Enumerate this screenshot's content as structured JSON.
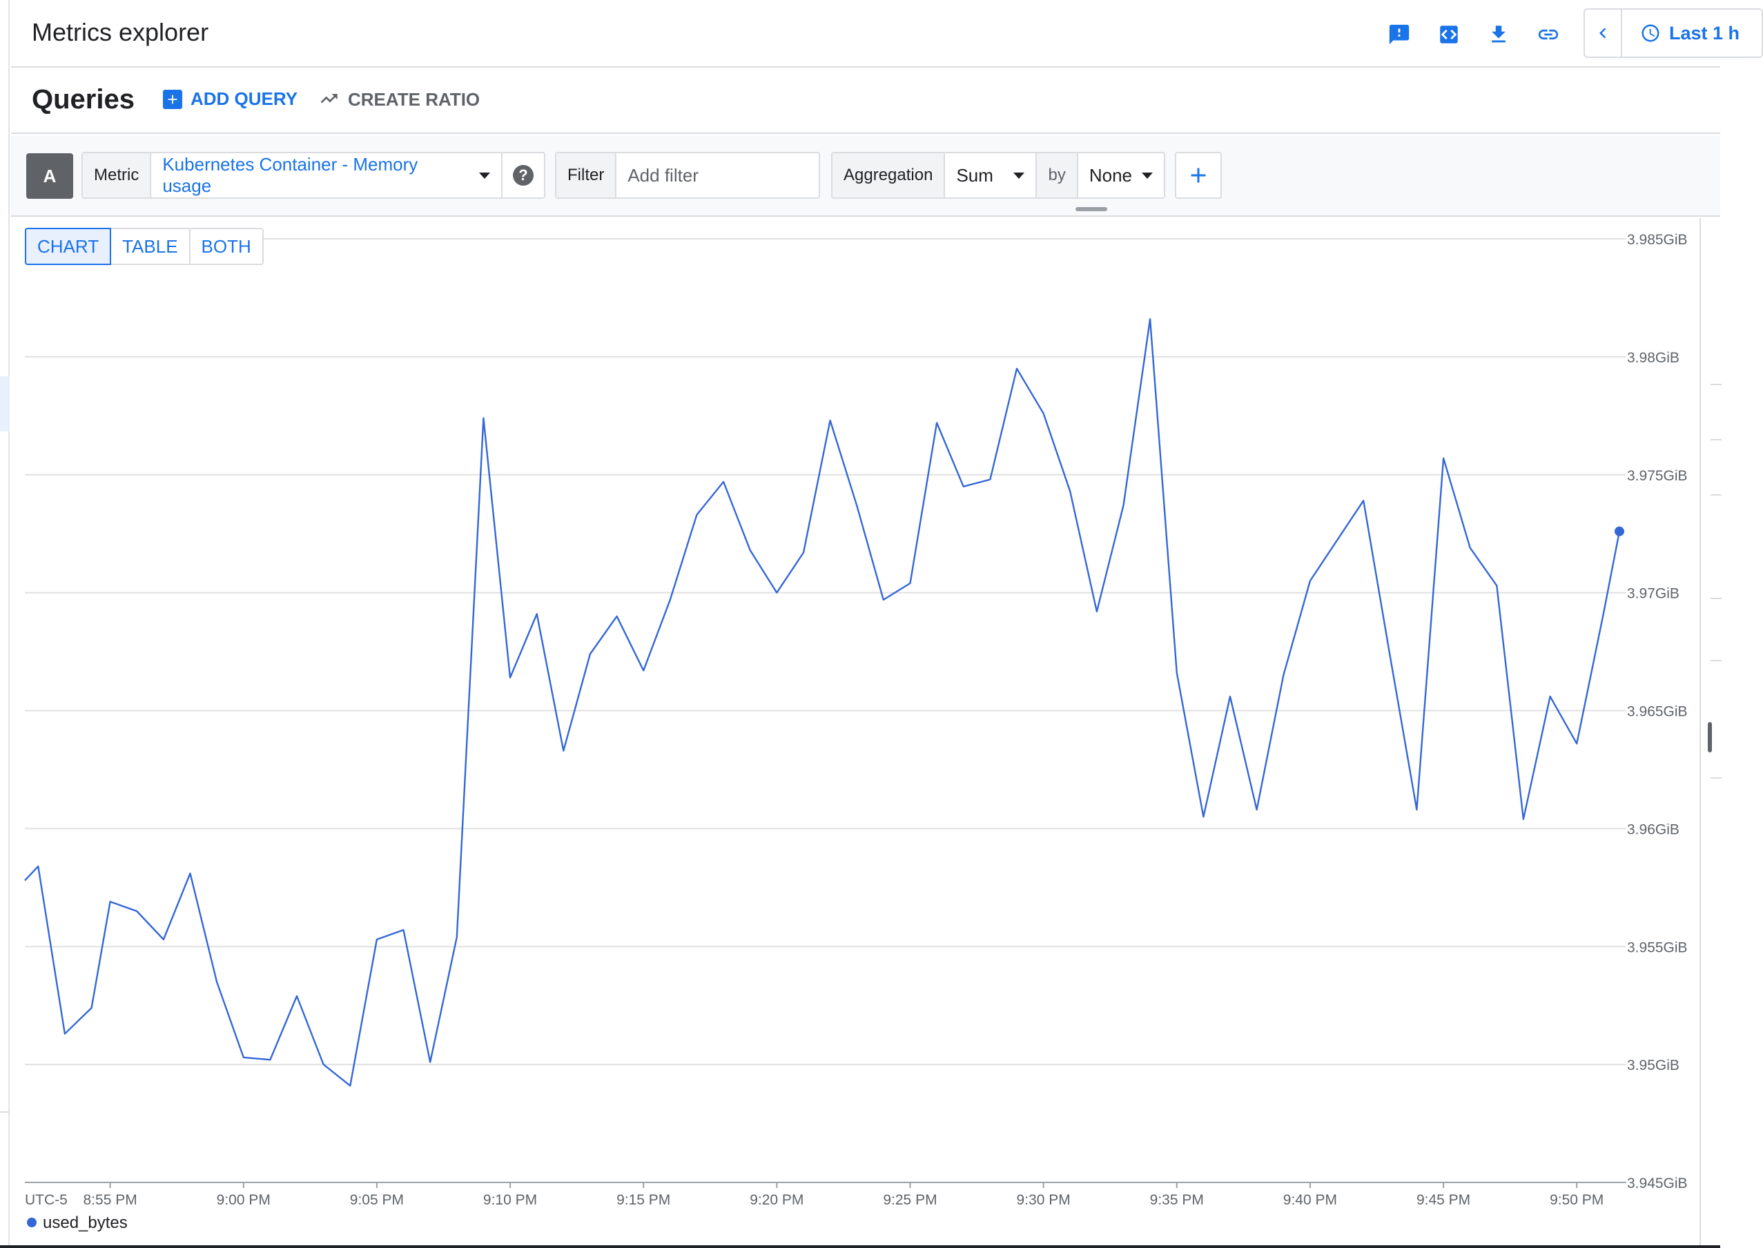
{
  "header": {
    "title": "Metrics explorer",
    "icons": [
      "feedback-icon",
      "code-icon",
      "download-icon",
      "link-icon"
    ],
    "time_range": "Last 1 h"
  },
  "queries": {
    "title": "Queries",
    "add_query_label": "ADD QUERY",
    "create_ratio_label": "CREATE RATIO"
  },
  "query": {
    "letter": "A",
    "metric_label": "Metric",
    "metric_value": "Kubernetes Container - Memory usage",
    "help_symbol": "?",
    "filter_label": "Filter",
    "filter_placeholder": "Add filter",
    "aggregation_label": "Aggregation",
    "aggregation_value": "Sum",
    "by_label": "by",
    "group_by_value": "None",
    "add_symbol": "+"
  },
  "view_toggle": {
    "chart": "CHART",
    "table": "TABLE",
    "both": "BOTH",
    "active": "chart"
  },
  "colors": {
    "accent": "#1a73e8",
    "series": "#3367d6",
    "grid": "#e0e0e0"
  },
  "chart_data": {
    "type": "line",
    "ylim": [
      3.945,
      3.985
    ],
    "y_unit": "GiB",
    "y_ticks": [
      "3.985GiB",
      "3.98GiB",
      "3.975GiB",
      "3.97GiB",
      "3.965GiB",
      "3.96GiB",
      "3.955GiB",
      "3.95GiB",
      "3.945GiB"
    ],
    "y_tick_values": [
      3.985,
      3.98,
      3.975,
      3.97,
      3.965,
      3.96,
      3.955,
      3.95,
      3.945
    ],
    "timezone_label": "UTC-5",
    "x_ticks": [
      "8:55 PM",
      "9:00 PM",
      "9:05 PM",
      "9:10 PM",
      "9:15 PM",
      "9:20 PM",
      "9:25 PM",
      "9:30 PM",
      "9:35 PM",
      "9:40 PM",
      "9:45 PM",
      "9:50 PM"
    ],
    "x_tick_minutes": [
      895,
      900,
      905,
      910,
      915,
      920,
      925,
      930,
      935,
      940,
      945,
      950
    ],
    "x_range_minutes": [
      891.8,
      951.6
    ],
    "grid": true,
    "legend_position": "bottom-left",
    "series": [
      {
        "name": "used_bytes",
        "x_minutes": [
          891.8,
          892.3,
          893.3,
          894.3,
          895.0,
          896.0,
          897.0,
          898.0,
          899.0,
          900.0,
          901.0,
          902.0,
          903.0,
          904.0,
          905.0,
          906.0,
          907.0,
          908.0,
          909.0,
          910.0,
          911.0,
          912.0,
          913.0,
          914.0,
          915.0,
          916.0,
          917.0,
          918.0,
          919.0,
          920.0,
          921.0,
          922.0,
          923.0,
          924.0,
          925.0,
          926.0,
          927.0,
          928.0,
          929.0,
          930.0,
          931.0,
          932.0,
          933.0,
          934.0,
          935.0,
          936.0,
          937.0,
          938.0,
          939.0,
          940.0,
          941.0,
          942.0,
          943.0,
          944.0,
          945.0,
          946.0,
          947.0,
          948.0,
          949.0,
          950.0,
          951.0,
          951.6
        ],
        "values": [
          3.9578,
          3.9584,
          3.9513,
          3.9524,
          3.9569,
          3.9565,
          3.9553,
          3.9581,
          3.9535,
          3.9503,
          3.9502,
          3.9529,
          3.95,
          3.9491,
          3.9553,
          3.9557,
          3.9501,
          3.9554,
          3.9774,
          3.9664,
          3.9691,
          3.9633,
          3.9674,
          3.969,
          3.9667,
          3.9697,
          3.9733,
          3.9747,
          3.9718,
          3.97,
          3.9717,
          3.9773,
          3.9737,
          3.9697,
          3.9704,
          3.9772,
          3.9745,
          3.9748,
          3.9795,
          3.9776,
          3.9743,
          3.9692,
          3.9737,
          3.9816,
          3.9666,
          3.9605,
          3.9656,
          3.9608,
          3.9665,
          3.9705,
          3.9722,
          3.9739,
          3.9673,
          3.9608,
          3.9757,
          3.9719,
          3.9703,
          3.9604,
          3.9656,
          3.9636,
          3.9691,
          3.9726
        ]
      }
    ]
  }
}
